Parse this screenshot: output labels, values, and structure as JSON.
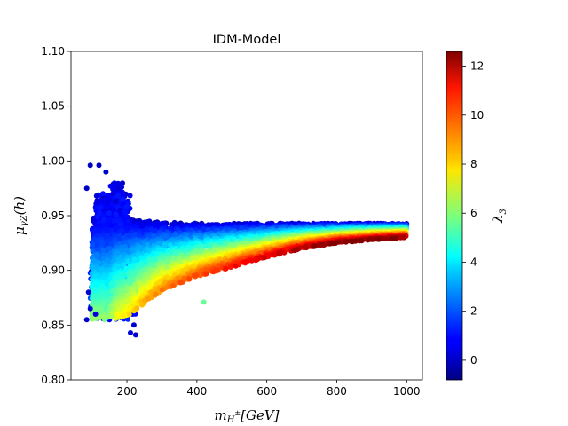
{
  "chart_data": {
    "type": "scatter",
    "title": "IDM-Model",
    "xlabel": {
      "base": "m",
      "sub": "H",
      "sup": "±",
      "rest": "[GeV]"
    },
    "ylabel": {
      "base": "μ",
      "sub": "γZ",
      "rest": "(h)"
    },
    "xlim": [
      40,
      1045
    ],
    "ylim": [
      0.8,
      1.1
    ],
    "xticks": [
      200,
      400,
      600,
      800,
      1000
    ],
    "xtick_labels": [
      "200",
      "400",
      "600",
      "800",
      "1000"
    ],
    "yticks": [
      0.8,
      0.85,
      0.9,
      0.95,
      1.0,
      1.05,
      1.1
    ],
    "ytick_labels": [
      "0.80",
      "0.85",
      "0.90",
      "0.95",
      "1.00",
      "1.05",
      "1.10"
    ],
    "grid": false,
    "colorbar": {
      "label": "λ",
      "label_sub": "3",
      "range": [
        -0.8,
        12.6
      ],
      "ticks": [
        0,
        2,
        4,
        6,
        8,
        10,
        12
      ],
      "tick_labels": [
        "0",
        "2",
        "4",
        "6",
        "8",
        "10",
        "12"
      ],
      "colormap": "jet"
    },
    "description": "Dense scatter of parameter points; color encodes lambda_3.",
    "band": {
      "upper_edge": [
        [
          140,
          0.948
        ],
        [
          200,
          0.947
        ],
        [
          300,
          0.944
        ],
        [
          400,
          0.943
        ],
        [
          600,
          0.943
        ],
        [
          800,
          0.943
        ],
        [
          1000,
          0.943
        ]
      ],
      "lower_edge": [
        [
          150,
          0.855
        ],
        [
          200,
          0.858
        ],
        [
          250,
          0.87
        ],
        [
          300,
          0.882
        ],
        [
          400,
          0.894
        ],
        [
          500,
          0.903
        ],
        [
          600,
          0.912
        ],
        [
          700,
          0.92
        ],
        [
          800,
          0.925
        ],
        [
          900,
          0.928
        ],
        [
          1000,
          0.93
        ]
      ]
    },
    "outlier_points": [
      [
        85,
        0.975,
        0.1
      ],
      [
        95,
        0.996,
        0.1
      ],
      [
        120,
        0.996,
        0.1
      ],
      [
        140,
        0.99,
        0.2
      ],
      [
        113,
        0.968,
        0.3
      ],
      [
        105,
        0.945,
        0.5
      ],
      [
        90,
        0.88,
        0.2
      ],
      [
        95,
        0.865,
        0.3
      ],
      [
        85,
        0.855,
        0.2
      ],
      [
        110,
        0.86,
        0.4
      ],
      [
        210,
        0.843,
        0.4
      ],
      [
        225,
        0.841,
        0.2
      ],
      [
        220,
        0.85,
        0.3
      ],
      [
        175,
        0.975,
        0.3
      ],
      [
        168,
        0.963,
        0.2
      ],
      [
        160,
        0.97,
        0.4
      ],
      [
        180,
        0.955,
        0.5
      ],
      [
        420,
        0.871,
        5.6
      ]
    ]
  }
}
